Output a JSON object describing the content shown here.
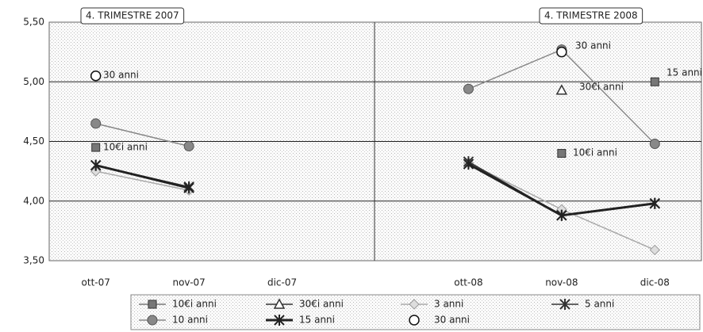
{
  "chart_data": {
    "type": "line",
    "categories": [
      "ott-07",
      "nov-07",
      "dic-07",
      null,
      "ott-08",
      "nov-08",
      "dic-08"
    ],
    "ylim": [
      3.5,
      5.5
    ],
    "yticks": [
      {
        "value": 3.5,
        "label": "3,50"
      },
      {
        "value": 4,
        "label": "4,00"
      },
      {
        "value": 4.5,
        "label": "4,50"
      },
      {
        "value": 5,
        "label": "5,00"
      },
      {
        "value": 5.5,
        "label": "5,50"
      }
    ],
    "grid": true,
    "series": [
      {
        "name": "10€i anni",
        "color": "#777777",
        "marker": "square",
        "line": false,
        "values": [
          4.45,
          null,
          null,
          null,
          null,
          4.4,
          5.0
        ]
      },
      {
        "name": "30€i anni",
        "color": "#333333",
        "marker": "triangle",
        "line": false,
        "values": [
          null,
          null,
          null,
          null,
          null,
          4.93,
          null
        ]
      },
      {
        "name": "3 anni",
        "color": "#aaaaaa",
        "marker": "diamond",
        "line": true,
        "values": [
          4.25,
          4.09,
          null,
          null,
          4.32,
          3.93,
          3.59
        ]
      },
      {
        "name": "5 anni",
        "color": "#333333",
        "marker": "star",
        "line": true,
        "values": [
          4.3,
          4.12,
          null,
          null,
          4.33,
          3.88,
          3.98
        ]
      },
      {
        "name": "10 anni",
        "color": "#888888",
        "marker": "circle",
        "line": true,
        "values": [
          4.65,
          4.46,
          null,
          null,
          4.94,
          5.27,
          4.48
        ]
      },
      {
        "name": "15 anni",
        "color": "#222222",
        "marker": "star",
        "line": true,
        "values": [
          4.3,
          4.11,
          null,
          null,
          4.31,
          3.88,
          3.98
        ]
      },
      {
        "name": "30 anni",
        "color": "#ffffff",
        "marker": "open",
        "line": false,
        "values": [
          5.05,
          null,
          null,
          null,
          null,
          5.25,
          null
        ]
      }
    ],
    "annotations": [
      "4. TRIMESTRE 2007",
      "4. TRIMESTRE 2008",
      "30 anni",
      "10€i anni",
      "30 anni",
      "30€i anni",
      "10€i anni",
      "15 anni"
    ]
  }
}
